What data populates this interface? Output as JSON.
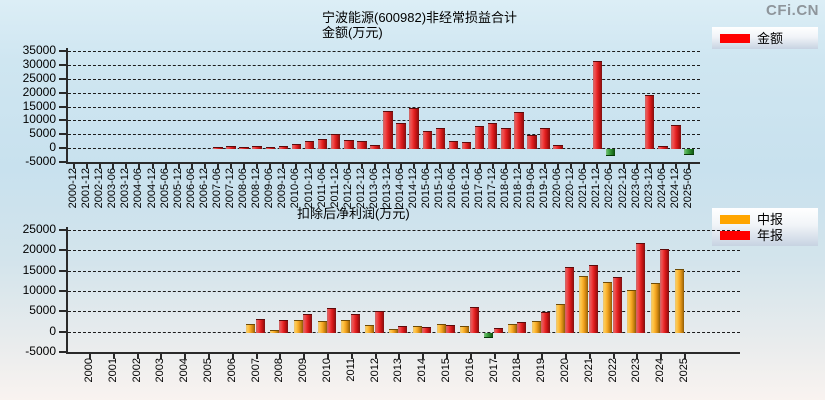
{
  "logo": "CFi.CN",
  "chart_data": [
    {
      "type": "bar",
      "title": "宁波能源(600982)非经常损益合计",
      "ylabel": "金额(万元)",
      "grid": "horizontal-dashed",
      "legend_position": "top-right",
      "ylim": [
        -5000,
        35000
      ],
      "ytick_step": 5000,
      "categories": [
        "2000-12",
        "2001-12",
        "2002-12",
        "2003-06",
        "2003-12",
        "2004-06",
        "2004-12",
        "2005-06",
        "2005-12",
        "2006-06",
        "2006-12",
        "2007-06",
        "2007-12",
        "2008-06",
        "2008-12",
        "2009-06",
        "2009-12",
        "2010-06",
        "2010-12",
        "2011-06",
        "2011-12",
        "2012-06",
        "2012-12",
        "2013-06",
        "2013-12",
        "2014-06",
        "2014-12",
        "2015-06",
        "2015-12",
        "2016-06",
        "2016-12",
        "2017-06",
        "2017-12",
        "2018-06",
        "2018-12",
        "2019-06",
        "2019-12",
        "2020-06",
        "2020-12",
        "2021-06",
        "2021-12",
        "2022-06",
        "2022-12",
        "2023-06",
        "2023-12",
        "2024-06",
        "2024-12",
        "2025-06"
      ],
      "series": [
        {
          "name": "金额",
          "color": "#ff0000",
          "negative_color": "#2f9e2f",
          "values": [
            null,
            null,
            null,
            null,
            null,
            null,
            null,
            null,
            null,
            null,
            null,
            500,
            600,
            500,
            600,
            500,
            600,
            1400,
            2500,
            3200,
            5000,
            2900,
            2500,
            1300,
            13400,
            8900,
            14500,
            6000,
            7400,
            2600,
            2100,
            7800,
            9100,
            7300,
            13100,
            4700,
            7200,
            1100,
            null,
            null,
            31400,
            -2000,
            null,
            null,
            19000,
            600,
            8300,
            -1800
          ]
        }
      ]
    },
    {
      "type": "bar",
      "title": "扣除后净利润(万元)",
      "grid": "horizontal-dashed",
      "legend_position": "top-right",
      "ylim": [
        -5000,
        25000
      ],
      "ytick_step": 5000,
      "categories": [
        "2000",
        "2001",
        "2002",
        "2003",
        "2004",
        "2005",
        "2006",
        "2007",
        "2008",
        "2009",
        "2010",
        "2011",
        "2012",
        "2013",
        "2014",
        "2015",
        "2016",
        "2017",
        "2018",
        "2019",
        "2020",
        "2021",
        "2022",
        "2023",
        "2024",
        "2025"
      ],
      "series": [
        {
          "name": "中报",
          "color": "#ffa500",
          "negative_color": "#2f9e2f",
          "values": [
            null,
            null,
            null,
            null,
            null,
            null,
            null,
            1900,
            500,
            2750,
            2600,
            2800,
            1700,
            600,
            1400,
            1900,
            1300,
            -1100,
            1900,
            2700,
            6800,
            13700,
            12300,
            10200,
            12000,
            15500
          ]
        },
        {
          "name": "年报",
          "color": "#ff0000",
          "negative_color": "#2f9e2f",
          "values": [
            null,
            null,
            null,
            null,
            null,
            null,
            null,
            3000,
            2750,
            4300,
            5900,
            4400,
            5000,
            1500,
            1200,
            1700,
            6100,
            800,
            2300,
            4800,
            16000,
            16300,
            13500,
            21800,
            20300,
            null
          ]
        }
      ]
    }
  ]
}
